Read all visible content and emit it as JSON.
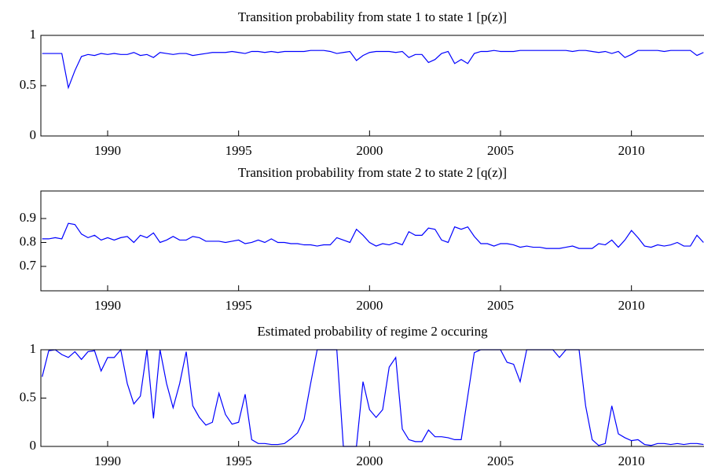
{
  "chart_data": [
    {
      "type": "line",
      "title": "Transition probability from state 1 to state 1 [p(z)]",
      "color": "#0000ff",
      "xlim": [
        1987.45,
        2012.77
      ],
      "xticks": [
        1990,
        1995,
        2000,
        2005,
        2010
      ],
      "ylim": [
        0,
        1
      ],
      "yticks": [
        0,
        0.5,
        1
      ],
      "x": [
        1987.5,
        1987.75,
        1988,
        1988.25,
        1988.5,
        1988.75,
        1989,
        1989.25,
        1989.5,
        1989.75,
        1990,
        1990.25,
        1990.5,
        1990.75,
        1991,
        1991.25,
        1991.5,
        1991.75,
        1992,
        1992.25,
        1992.5,
        1992.75,
        1993,
        1993.25,
        1993.5,
        1993.75,
        1994,
        1994.25,
        1994.5,
        1994.75,
        1995,
        1995.25,
        1995.5,
        1995.75,
        1996,
        1996.25,
        1996.5,
        1996.75,
        1997,
        1997.25,
        1997.5,
        1997.75,
        1998,
        1998.25,
        1998.5,
        1998.75,
        1999,
        1999.25,
        1999.5,
        1999.75,
        2000,
        2000.25,
        2000.5,
        2000.75,
        2001,
        2001.25,
        2001.5,
        2001.75,
        2002,
        2002.25,
        2002.5,
        2002.75,
        2003,
        2003.25,
        2003.5,
        2003.75,
        2004,
        2004.25,
        2004.5,
        2004.75,
        2005,
        2005.25,
        2005.5,
        2005.75,
        2006,
        2006.25,
        2006.5,
        2006.75,
        2007,
        2007.25,
        2007.5,
        2007.75,
        2008,
        2008.25,
        2008.5,
        2008.75,
        2009,
        2009.25,
        2009.5,
        2009.75,
        2010,
        2010.25,
        2010.5,
        2010.75,
        2011,
        2011.25,
        2011.5,
        2011.75,
        2012,
        2012.25,
        2012.5,
        2012.75
      ],
      "values": [
        0.82,
        0.82,
        0.82,
        0.82,
        0.48,
        0.65,
        0.79,
        0.81,
        0.8,
        0.82,
        0.81,
        0.82,
        0.81,
        0.81,
        0.83,
        0.8,
        0.81,
        0.78,
        0.83,
        0.82,
        0.81,
        0.82,
        0.82,
        0.8,
        0.81,
        0.82,
        0.83,
        0.83,
        0.83,
        0.84,
        0.83,
        0.82,
        0.84,
        0.84,
        0.83,
        0.84,
        0.83,
        0.84,
        0.84,
        0.84,
        0.84,
        0.85,
        0.85,
        0.85,
        0.84,
        0.82,
        0.83,
        0.84,
        0.75,
        0.8,
        0.83,
        0.84,
        0.84,
        0.84,
        0.83,
        0.84,
        0.78,
        0.81,
        0.81,
        0.73,
        0.76,
        0.82,
        0.84,
        0.72,
        0.76,
        0.72,
        0.82,
        0.84,
        0.84,
        0.85,
        0.84,
        0.84,
        0.84,
        0.85,
        0.85,
        0.85,
        0.85,
        0.85,
        0.85,
        0.85,
        0.85,
        0.84,
        0.85,
        0.85,
        0.84,
        0.83,
        0.84,
        0.82,
        0.84,
        0.78,
        0.81,
        0.85,
        0.85,
        0.85,
        0.85,
        0.84,
        0.85,
        0.85,
        0.85,
        0.85,
        0.8,
        0.83
      ]
    },
    {
      "type": "line",
      "title": "Transition probability from state 2 to state 2 [q(z)]",
      "color": "#0000ff",
      "xlim": [
        1987.45,
        2012.77
      ],
      "xticks": [
        1990,
        1995,
        2000,
        2005,
        2010
      ],
      "ylim": [
        0.598,
        1.015
      ],
      "yticks": [
        0.7,
        0.8,
        0.9
      ],
      "x": [
        1987.5,
        1987.75,
        1988,
        1988.25,
        1988.5,
        1988.75,
        1989,
        1989.25,
        1989.5,
        1989.75,
        1990,
        1990.25,
        1990.5,
        1990.75,
        1991,
        1991.25,
        1991.5,
        1991.75,
        1992,
        1992.25,
        1992.5,
        1992.75,
        1993,
        1993.25,
        1993.5,
        1993.75,
        1994,
        1994.25,
        1994.5,
        1994.75,
        1995,
        1995.25,
        1995.5,
        1995.75,
        1996,
        1996.25,
        1996.5,
        1996.75,
        1997,
        1997.25,
        1997.5,
        1997.75,
        1998,
        1998.25,
        1998.5,
        1998.75,
        1999,
        1999.25,
        1999.5,
        1999.75,
        2000,
        2000.25,
        2000.5,
        2000.75,
        2001,
        2001.25,
        2001.5,
        2001.75,
        2002,
        2002.25,
        2002.5,
        2002.75,
        2003,
        2003.25,
        2003.5,
        2003.75,
        2004,
        2004.25,
        2004.5,
        2004.75,
        2005,
        2005.25,
        2005.5,
        2005.75,
        2006,
        2006.25,
        2006.5,
        2006.75,
        2007,
        2007.25,
        2007.5,
        2007.75,
        2008,
        2008.25,
        2008.5,
        2008.75,
        2009,
        2009.25,
        2009.5,
        2009.75,
        2010,
        2010.25,
        2010.5,
        2010.75,
        2011,
        2011.25,
        2011.5,
        2011.75,
        2012,
        2012.25,
        2012.5,
        2012.75
      ],
      "values": [
        0.815,
        0.815,
        0.82,
        0.815,
        0.88,
        0.875,
        0.835,
        0.82,
        0.83,
        0.81,
        0.82,
        0.81,
        0.82,
        0.825,
        0.8,
        0.83,
        0.82,
        0.84,
        0.8,
        0.81,
        0.825,
        0.81,
        0.81,
        0.825,
        0.82,
        0.805,
        0.805,
        0.805,
        0.8,
        0.805,
        0.81,
        0.795,
        0.8,
        0.81,
        0.8,
        0.815,
        0.8,
        0.8,
        0.795,
        0.795,
        0.79,
        0.79,
        0.785,
        0.79,
        0.79,
        0.82,
        0.81,
        0.8,
        0.855,
        0.83,
        0.8,
        0.785,
        0.795,
        0.79,
        0.8,
        0.79,
        0.845,
        0.83,
        0.83,
        0.86,
        0.855,
        0.81,
        0.8,
        0.865,
        0.855,
        0.865,
        0.825,
        0.795,
        0.795,
        0.785,
        0.795,
        0.795,
        0.79,
        0.78,
        0.785,
        0.78,
        0.78,
        0.775,
        0.775,
        0.775,
        0.78,
        0.785,
        0.775,
        0.775,
        0.775,
        0.795,
        0.79,
        0.81,
        0.78,
        0.81,
        0.85,
        0.82,
        0.785,
        0.78,
        0.79,
        0.785,
        0.79,
        0.8,
        0.785,
        0.785,
        0.83,
        0.8
      ]
    },
    {
      "type": "line",
      "title": "Estimated probability of regime 2 occuring",
      "color": "#0000ff",
      "xlim": [
        1987.45,
        2012.77
      ],
      "xticks": [
        1990,
        1995,
        2000,
        2005,
        2010
      ],
      "ylim": [
        0,
        1
      ],
      "yticks": [
        0,
        0.5,
        1
      ],
      "x": [
        1987.5,
        1987.75,
        1988,
        1988.25,
        1988.5,
        1988.75,
        1989,
        1989.25,
        1989.5,
        1989.75,
        1990,
        1990.25,
        1990.5,
        1990.75,
        1991,
        1991.25,
        1991.5,
        1991.75,
        1992,
        1992.25,
        1992.5,
        1992.75,
        1993,
        1993.25,
        1993.5,
        1993.75,
        1994,
        1994.25,
        1994.5,
        1994.75,
        1995,
        1995.25,
        1995.5,
        1995.75,
        1996,
        1996.25,
        1996.5,
        1996.75,
        1997,
        1997.25,
        1997.5,
        1997.75,
        1998,
        1998.25,
        1998.5,
        1998.75,
        1999,
        1999.25,
        1999.5,
        1999.75,
        2000,
        2000.25,
        2000.5,
        2000.75,
        2001,
        2001.25,
        2001.5,
        2001.75,
        2002,
        2002.25,
        2002.5,
        2002.75,
        2003,
        2003.25,
        2003.5,
        2003.75,
        2004,
        2004.25,
        2004.5,
        2004.75,
        2005,
        2005.25,
        2005.5,
        2005.75,
        2006,
        2006.25,
        2006.5,
        2006.75,
        2007,
        2007.25,
        2007.5,
        2007.75,
        2008,
        2008.25,
        2008.5,
        2008.75,
        2009,
        2009.25,
        2009.5,
        2009.75,
        2010,
        2010.25,
        2010.5,
        2010.75,
        2011,
        2011.25,
        2011.5,
        2011.75,
        2012,
        2012.25,
        2012.5,
        2012.75
      ],
      "values": [
        0.72,
        0.99,
        1,
        0.95,
        0.92,
        0.98,
        0.9,
        0.98,
        0.99,
        0.78,
        0.92,
        0.92,
        1,
        0.65,
        0.44,
        0.52,
        1,
        0.29,
        1,
        0.65,
        0.4,
        0.65,
        0.98,
        0.42,
        0.3,
        0.22,
        0.25,
        0.55,
        0.33,
        0.23,
        0.25,
        0.54,
        0.07,
        0.03,
        0.03,
        0.02,
        0.02,
        0.03,
        0.08,
        0.14,
        0.28,
        0.65,
        1,
        1,
        1,
        1,
        0,
        0,
        0,
        0.67,
        0.38,
        0.3,
        0.38,
        0.82,
        0.92,
        0.18,
        0.07,
        0.05,
        0.05,
        0.17,
        0.1,
        0.1,
        0.09,
        0.07,
        0.07,
        0.52,
        0.97,
        1,
        1,
        1,
        1,
        0.87,
        0.85,
        0.67,
        1,
        1,
        1,
        1,
        1,
        0.92,
        1,
        1,
        1,
        0.42,
        0.07,
        0.01,
        0.03,
        0.42,
        0.13,
        0.09,
        0.06,
        0.07,
        0.02,
        0.01,
        0.03,
        0.03,
        0.02,
        0.03,
        0.02,
        0.03,
        0.03,
        0.02
      ]
    }
  ]
}
